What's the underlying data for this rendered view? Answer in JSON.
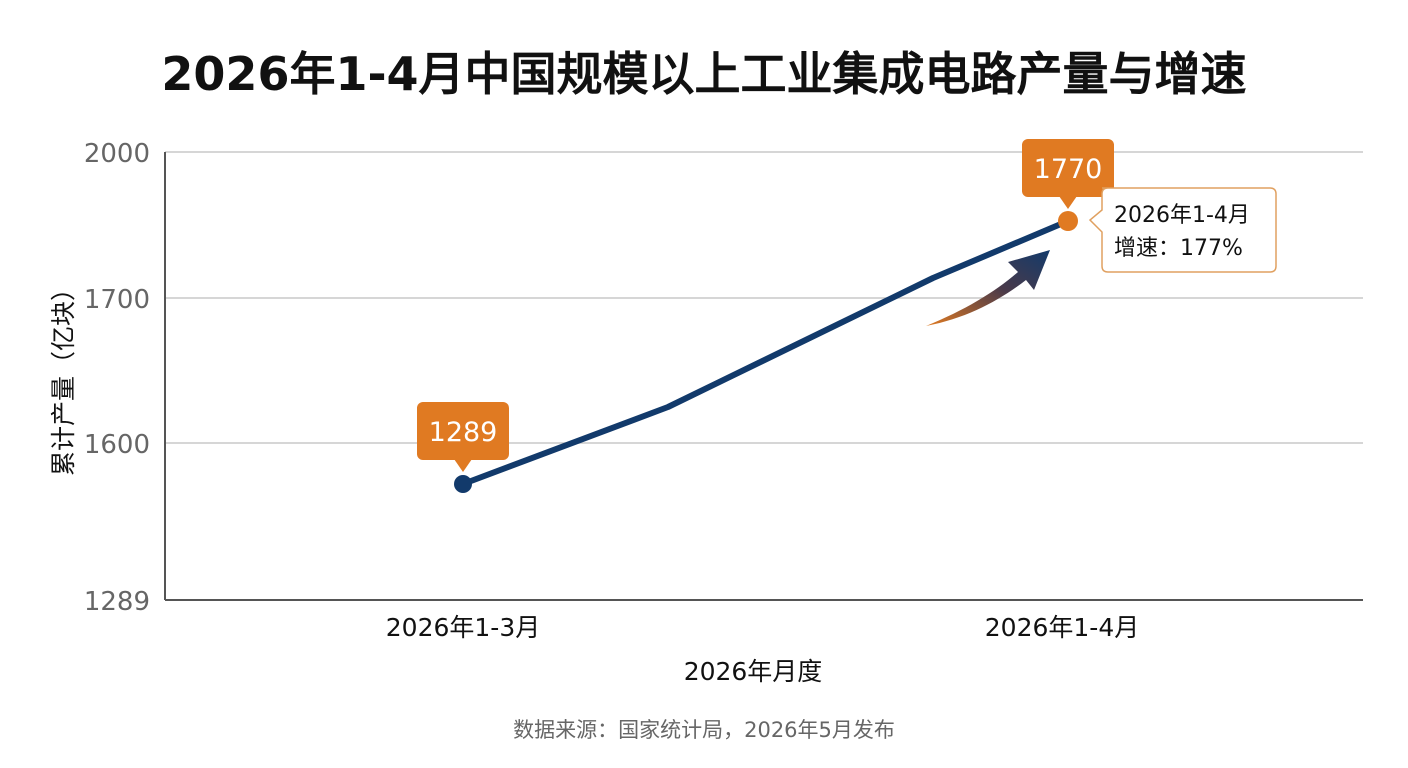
{
  "chart_data": {
    "type": "line",
    "title": "2026年1-4月中国规模以上工业集成电路产量与增速",
    "xlabel": "2026年月度",
    "ylabel": "累计产量（亿块）",
    "categories": [
      "2026年1-3月",
      "2026年1-4月"
    ],
    "y_ticks": [
      "2000",
      "1700",
      "1600",
      "1289"
    ],
    "series": [
      {
        "values": [
          1289,
          1770
        ],
        "data_labels": [
          "1289",
          "1770"
        ],
        "color": "#123a6b"
      }
    ],
    "annotation": {
      "lines": [
        "2026年1-4月",
        "增速：177%"
      ]
    },
    "grid": true,
    "colors": {
      "line": "#123a6b",
      "badge": "#e07a22",
      "callout_border": "#e0a060",
      "grid": "#c8c8c8"
    }
  },
  "source": "数据来源：国家统计局，2026年5月发布"
}
